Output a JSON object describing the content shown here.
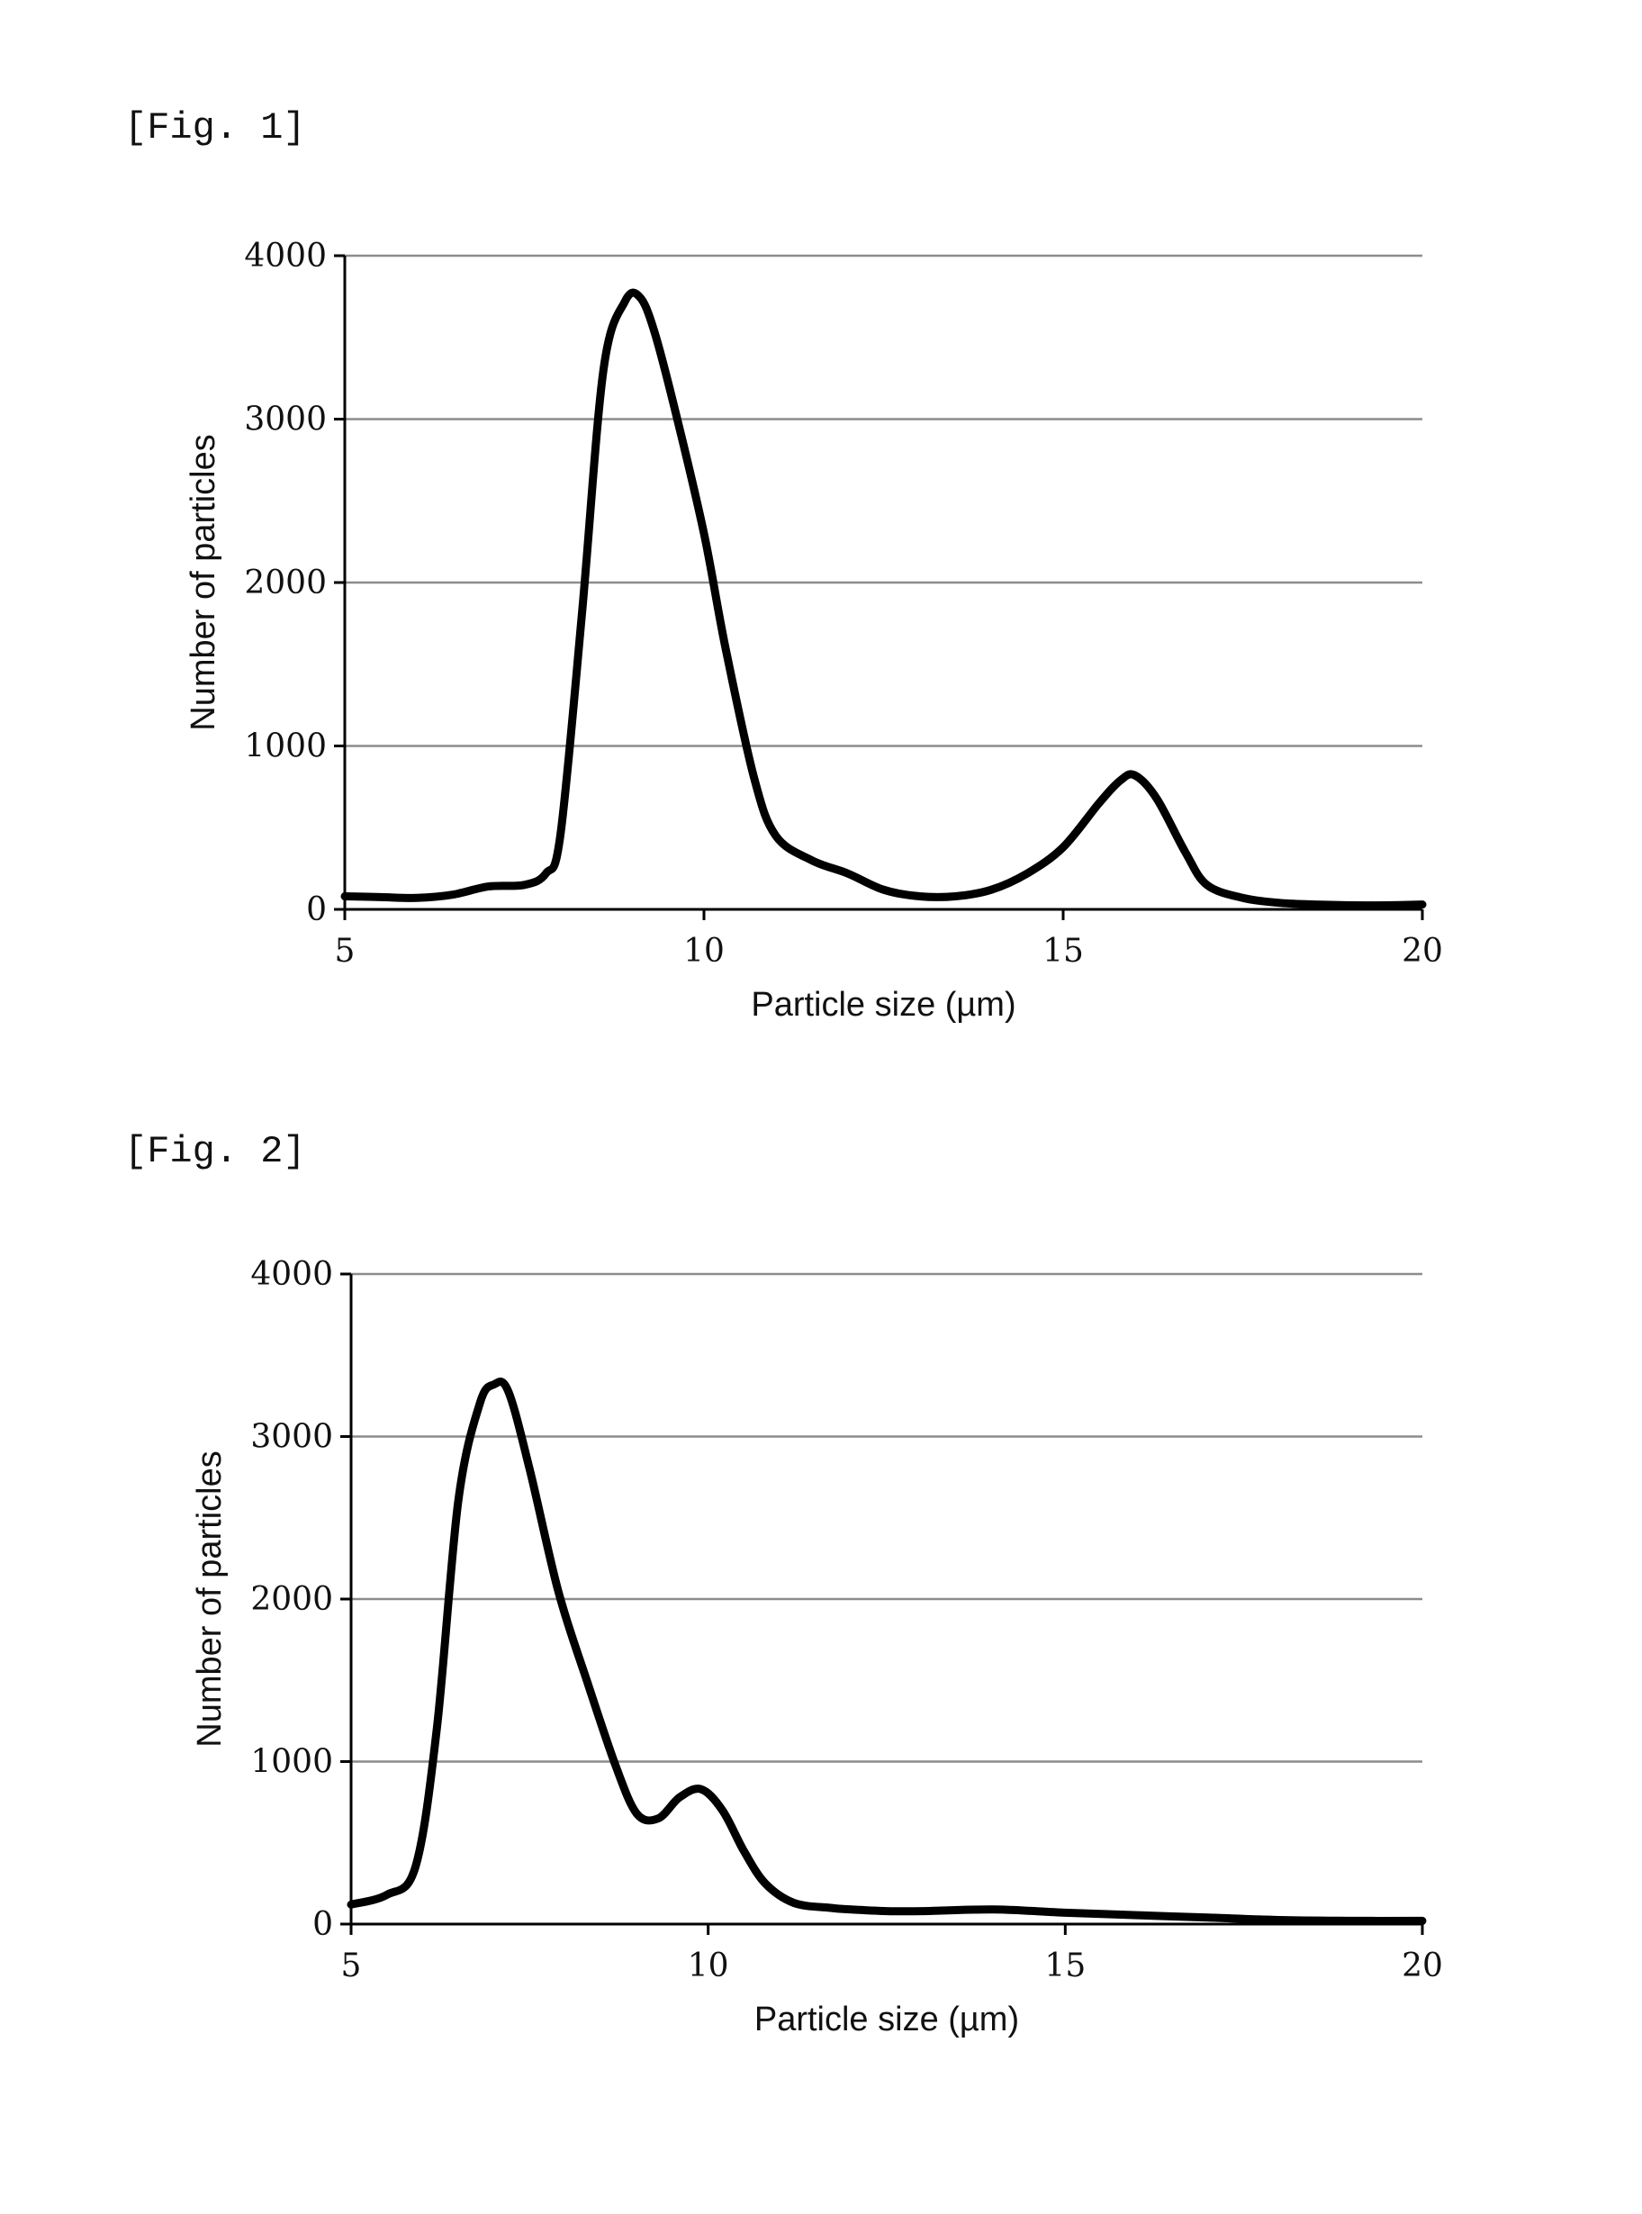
{
  "figures": [
    {
      "label": "[Fig. 1]"
    },
    {
      "label": "[Fig. 2]"
    }
  ],
  "chart_data": [
    {
      "type": "line",
      "xlabel": "Particle size (µm)",
      "ylabel": "Number of particles",
      "xlim": [
        5,
        20
      ],
      "ylim": [
        0,
        4000
      ],
      "xticks": [
        5,
        10,
        15,
        20
      ],
      "yticks": [
        0,
        1000,
        2000,
        3000,
        4000
      ],
      "grid": "horizontal",
      "line_color": "#000000",
      "series": [
        {
          "x": [
            5,
            5.5,
            6,
            6.5,
            7,
            7.5,
            7.8,
            8,
            8.3,
            8.6,
            8.9,
            9.1,
            9.3,
            9.6,
            10,
            10.3,
            10.7,
            11,
            11.5,
            12,
            12.5,
            13,
            13.5,
            14,
            14.5,
            15,
            15.5,
            15.8,
            16,
            16.3,
            16.7,
            17,
            17.5,
            18,
            18.5,
            19,
            19.5,
            20
          ],
          "y": [
            80,
            75,
            70,
            90,
            140,
            150,
            220,
            450,
            1800,
            3300,
            3720,
            3750,
            3550,
            3050,
            2300,
            1600,
            800,
            450,
            300,
            220,
            120,
            80,
            80,
            120,
            220,
            380,
            650,
            790,
            820,
            680,
            350,
            150,
            70,
            40,
            30,
            25,
            25,
            30
          ]
        }
      ]
    },
    {
      "type": "line",
      "xlabel": "Particle size (µm)",
      "ylabel": "Number of particles",
      "xlim": [
        5,
        20
      ],
      "ylim": [
        0,
        4000
      ],
      "xticks": [
        5,
        10,
        15,
        20
      ],
      "yticks": [
        0,
        1000,
        2000,
        3000,
        4000
      ],
      "grid": "horizontal",
      "line_color": "#000000",
      "series": [
        {
          "x": [
            5,
            5.5,
            5.9,
            6.2,
            6.5,
            6.8,
            7,
            7.2,
            7.5,
            7.9,
            8.3,
            8.7,
            9,
            9.3,
            9.6,
            9.9,
            10.2,
            10.5,
            10.8,
            11.2,
            11.7,
            12,
            12.5,
            13,
            14,
            15,
            16,
            17,
            18,
            19,
            20
          ],
          "y": [
            120,
            180,
            350,
            1200,
            2600,
            3200,
            3320,
            3280,
            2800,
            2050,
            1500,
            980,
            680,
            650,
            780,
            830,
            700,
            450,
            250,
            130,
            100,
            90,
            80,
            80,
            90,
            70,
            55,
            40,
            25,
            20,
            20
          ]
        }
      ]
    }
  ]
}
